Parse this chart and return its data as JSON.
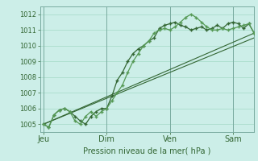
{
  "xlabel": "Pression niveau de la mer( hPa )",
  "ylim": [
    1004.5,
    1012.5
  ],
  "yticks": [
    1005,
    1006,
    1007,
    1008,
    1009,
    1010,
    1011,
    1012
  ],
  "bg_color": "#cceee8",
  "grid_color": "#aaddcc",
  "line_color": "#336633",
  "line_color_light": "#559955",
  "day_labels": [
    "Jeu",
    "Dim",
    "Ven",
    "Sam"
  ],
  "day_positions": [
    0,
    36,
    72,
    108
  ],
  "xlim": [
    -2,
    120
  ],
  "series1_x": [
    0,
    3,
    6,
    9,
    12,
    15,
    18,
    21,
    24,
    27,
    30,
    33,
    36,
    39,
    42,
    45,
    48,
    51,
    54,
    57,
    60,
    63,
    66,
    69,
    72,
    75,
    78,
    81,
    84,
    87,
    90,
    93,
    96,
    99,
    102,
    105,
    108,
    111,
    114,
    117,
    120
  ],
  "series1_y": [
    1005.0,
    1004.8,
    1005.6,
    1005.9,
    1006.0,
    1005.8,
    1005.5,
    1005.2,
    1005.0,
    1005.5,
    1005.8,
    1006.0,
    1006.0,
    1006.8,
    1007.8,
    1008.3,
    1009.0,
    1009.5,
    1009.8,
    1010.0,
    1010.3,
    1010.5,
    1011.1,
    1011.3,
    1011.4,
    1011.5,
    1011.3,
    1011.2,
    1011.0,
    1011.1,
    1011.2,
    1011.0,
    1011.1,
    1011.3,
    1011.1,
    1011.4,
    1011.5,
    1011.4,
    1011.1,
    1011.4,
    1010.8
  ],
  "series2_x": [
    0,
    3,
    6,
    9,
    12,
    15,
    18,
    21,
    24,
    27,
    30,
    33,
    36,
    39,
    42,
    45,
    48,
    51,
    54,
    57,
    60,
    63,
    66,
    69,
    72,
    75,
    78,
    81,
    84,
    87,
    90,
    93,
    96,
    99,
    102,
    105,
    108,
    111,
    114,
    117,
    120
  ],
  "series2_y": [
    1005.0,
    1004.8,
    1005.6,
    1005.9,
    1006.0,
    1005.8,
    1005.2,
    1005.0,
    1005.5,
    1005.8,
    1005.5,
    1005.8,
    1006.0,
    1006.5,
    1007.0,
    1007.5,
    1008.3,
    1009.0,
    1009.5,
    1010.0,
    1010.3,
    1010.8,
    1011.0,
    1011.1,
    1011.0,
    1011.2,
    1011.5,
    1011.8,
    1012.0,
    1011.8,
    1011.5,
    1011.2,
    1011.0,
    1011.0,
    1011.1,
    1011.0,
    1011.1,
    1011.2,
    1011.3,
    1011.4,
    1010.8
  ],
  "series3_x": [
    0,
    120
  ],
  "series3_y": [
    1005.0,
    1010.8
  ],
  "series4_x": [
    0,
    120
  ],
  "series4_y": [
    1005.0,
    1010.5
  ]
}
